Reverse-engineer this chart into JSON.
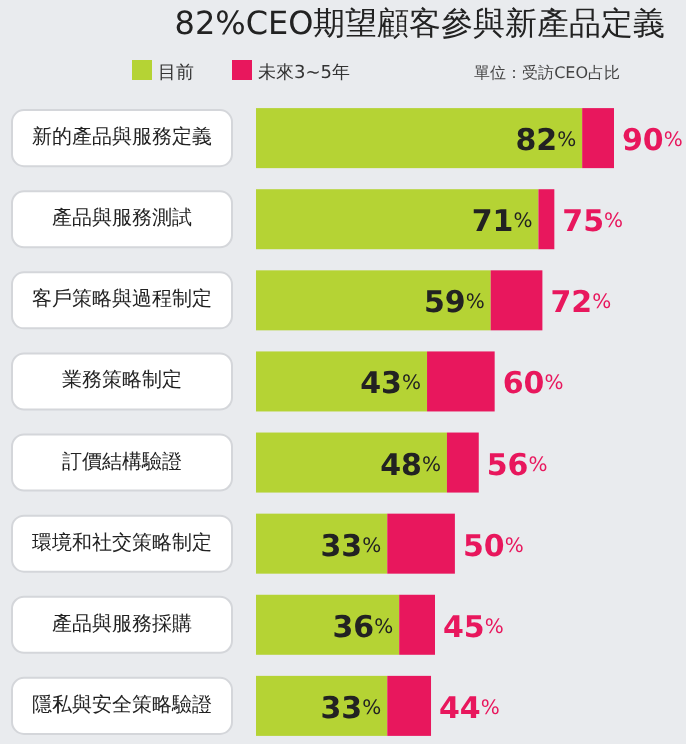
{
  "chart_data": {
    "type": "bar",
    "orientation": "horizontal",
    "stacked": true,
    "title": "82%CEO期望顧客參與新產品定義",
    "annotations": [
      "單位：受訪CEO占比"
    ],
    "legend": "top left",
    "categories": [
      "新的產品與服務定義",
      "產品與服務測試",
      "客戶策略與過程制定",
      "業務策略制定",
      "訂價結構驗證",
      "環境和社交策略制定",
      "產品與服務採購",
      "隱私與安全策略驗證"
    ],
    "series": [
      {
        "name": "目前",
        "color": "#b5d334",
        "values": [
          82,
          71,
          59,
          43,
          48,
          33,
          36,
          33
        ],
        "value_labels": [
          "82%",
          "71%",
          "59%",
          "43%",
          "48%",
          "33%",
          "36%",
          "33%"
        ]
      },
      {
        "name": "未來3~5年",
        "color": "#e8175d",
        "values": [
          8,
          4,
          13,
          17,
          8,
          17,
          9,
          11
        ]
      }
    ],
    "totals": [
      "90%",
      "75%",
      "72%",
      "60%",
      "56%",
      "50%",
      "45%",
      "44%"
    ]
  }
}
